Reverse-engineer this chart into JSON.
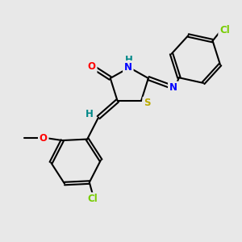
{
  "bg_color": "#e8e8e8",
  "bond_color": "#000000",
  "bond_width": 1.5,
  "atom_colors": {
    "O": "#ff0000",
    "N": "#0000ff",
    "S": "#bbaa00",
    "Cl_lower": "#77cc00",
    "Cl_upper": "#77cc00",
    "H_label": "#008888"
  },
  "font_size_atom": 8.5,
  "fig_bg": "#e8e8e8"
}
